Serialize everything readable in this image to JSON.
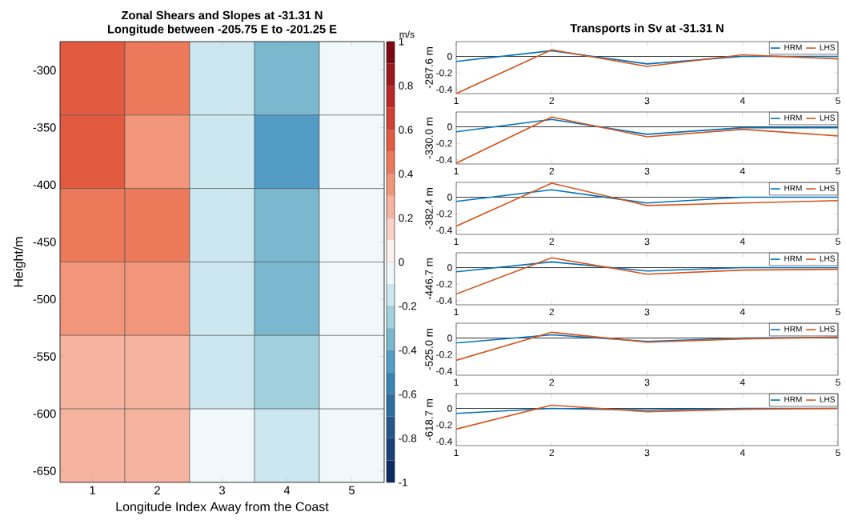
{
  "chart_data": [
    {
      "type": "heatmap",
      "title": "Zonal Shears and Slopes at -31.31 N",
      "subtitle": "Longitude between -205.75 E to -201.25 E",
      "xlabel": "Longitude Index Away from the Coast",
      "ylabel": "Height/m",
      "clabel": "m/s",
      "categories": [
        "1",
        "2",
        "3",
        "4",
        "5"
      ],
      "ylim": [
        -660,
        -275
      ],
      "yticks": [
        -300,
        -350,
        -400,
        -450,
        -500,
        -550,
        -600,
        -650
      ],
      "clim": [
        -1,
        1
      ],
      "cticks": [
        -1,
        -0.8,
        -0.6,
        -0.4,
        -0.2,
        0,
        0.2,
        0.4,
        0.6,
        0.8,
        1
      ],
      "cells": [
        [
          0.55,
          0.45,
          -0.15,
          -0.35,
          -0.05
        ],
        [
          0.55,
          0.35,
          -0.15,
          -0.45,
          -0.05
        ],
        [
          0.45,
          0.45,
          -0.15,
          -0.35,
          -0.05
        ],
        [
          0.35,
          0.35,
          -0.15,
          -0.35,
          -0.05
        ],
        [
          0.25,
          0.25,
          -0.15,
          -0.25,
          -0.05
        ],
        [
          0.25,
          0.25,
          -0.05,
          -0.15,
          -0.05
        ]
      ]
    },
    {
      "type": "line",
      "title": "Transports in Sv at -31.31 N",
      "ylabel": "-287.6 m",
      "x": [
        1,
        2,
        3,
        4,
        5
      ],
      "xlim": [
        1,
        5
      ],
      "xticks": [
        1,
        2,
        3,
        4,
        5
      ],
      "ylim": [
        -0.45,
        0.18
      ],
      "yticks": [
        -0.4,
        -0.2,
        0
      ],
      "legend": "top right",
      "ref_lines": [
        {
          "axis": "y",
          "value": 0,
          "color": "#000000"
        }
      ],
      "series": [
        {
          "name": "HRM",
          "color": "#0072bd",
          "values": [
            -0.06,
            0.07,
            -0.09,
            0.0,
            0.0
          ]
        },
        {
          "name": "LHS",
          "color": "#d95319",
          "values": [
            -0.45,
            0.08,
            -0.12,
            0.02,
            -0.03
          ]
        }
      ]
    },
    {
      "type": "line",
      "ylabel": "-330.0 m",
      "x": [
        1,
        2,
        3,
        4,
        5
      ],
      "xlim": [
        1,
        5
      ],
      "xticks": [
        1,
        2,
        3,
        4,
        5
      ],
      "ylim": [
        -0.45,
        0.18
      ],
      "yticks": [
        -0.4,
        -0.2,
        0
      ],
      "legend": "top right",
      "ref_lines": [
        {
          "axis": "y",
          "value": 0,
          "color": "#000000"
        }
      ],
      "series": [
        {
          "name": "HRM",
          "color": "#0072bd",
          "values": [
            -0.06,
            0.09,
            -0.09,
            -0.01,
            -0.01
          ]
        },
        {
          "name": "LHS",
          "color": "#d95319",
          "values": [
            -0.44,
            0.12,
            -0.12,
            -0.03,
            -0.11
          ]
        }
      ]
    },
    {
      "type": "line",
      "ylabel": "-382.4 m",
      "x": [
        1,
        2,
        3,
        4,
        5
      ],
      "xlim": [
        1,
        5
      ],
      "xticks": [
        1,
        2,
        3,
        4,
        5
      ],
      "ylim": [
        -0.45,
        0.18
      ],
      "yticks": [
        -0.4,
        -0.2,
        0
      ],
      "legend": "top right",
      "ref_lines": [
        {
          "axis": "y",
          "value": 0,
          "color": "#000000"
        }
      ],
      "series": [
        {
          "name": "HRM",
          "color": "#0072bd",
          "values": [
            -0.05,
            0.09,
            -0.07,
            0.0,
            0.0
          ]
        },
        {
          "name": "LHS",
          "color": "#d95319",
          "values": [
            -0.35,
            0.17,
            -0.1,
            -0.07,
            -0.04
          ]
        }
      ]
    },
    {
      "type": "line",
      "ylabel": "-446.7 m",
      "x": [
        1,
        2,
        3,
        4,
        5
      ],
      "xlim": [
        1,
        5
      ],
      "xticks": [
        1,
        2,
        3,
        4,
        5
      ],
      "ylim": [
        -0.45,
        0.18
      ],
      "yticks": [
        -0.4,
        -0.2,
        0
      ],
      "legend": "top right",
      "ref_lines": [
        {
          "axis": "y",
          "value": 0,
          "color": "#000000"
        }
      ],
      "series": [
        {
          "name": "HRM",
          "color": "#0072bd",
          "values": [
            -0.05,
            0.07,
            -0.04,
            0.0,
            0.0
          ]
        },
        {
          "name": "LHS",
          "color": "#d95319",
          "values": [
            -0.32,
            0.12,
            -0.08,
            -0.03,
            -0.02
          ]
        }
      ]
    },
    {
      "type": "line",
      "ylabel": "-525.0 m",
      "x": [
        1,
        2,
        3,
        4,
        5
      ],
      "xlim": [
        1,
        5
      ],
      "xticks": [
        1,
        2,
        3,
        4,
        5
      ],
      "ylim": [
        -0.45,
        0.18
      ],
      "yticks": [
        -0.4,
        -0.2,
        0
      ],
      "legend": "top right",
      "ref_lines": [
        {
          "axis": "y",
          "value": 0,
          "color": "#000000"
        }
      ],
      "series": [
        {
          "name": "HRM",
          "color": "#0072bd",
          "values": [
            -0.06,
            0.04,
            -0.04,
            0.0,
            0.01
          ]
        },
        {
          "name": "LHS",
          "color": "#d95319",
          "values": [
            -0.27,
            0.07,
            -0.05,
            -0.01,
            0.01
          ]
        }
      ]
    },
    {
      "type": "line",
      "ylabel": "-618.7 m",
      "x": [
        1,
        2,
        3,
        4,
        5
      ],
      "xlim": [
        1,
        5
      ],
      "xticks": [
        1,
        2,
        3,
        4,
        5
      ],
      "ylim": [
        -0.45,
        0.18
      ],
      "yticks": [
        -0.4,
        -0.2,
        0
      ],
      "legend": "top right",
      "ref_lines": [
        {
          "axis": "y",
          "value": 0,
          "color": "#000000"
        }
      ],
      "series": [
        {
          "name": "HRM",
          "color": "#0072bd",
          "values": [
            -0.06,
            0.0,
            -0.02,
            0.0,
            0.0
          ]
        },
        {
          "name": "LHS",
          "color": "#d95319",
          "values": [
            -0.25,
            0.04,
            -0.04,
            -0.01,
            0.0
          ]
        }
      ]
    }
  ]
}
